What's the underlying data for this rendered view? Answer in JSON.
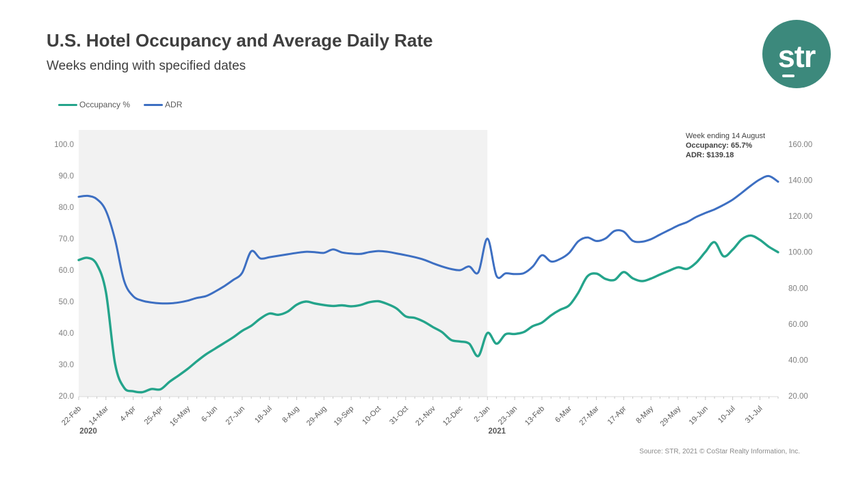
{
  "header": {
    "title": "U.S. Hotel Occupancy and Average Daily Rate",
    "subtitle": "Weeks ending with specified dates"
  },
  "logo": {
    "text": "str",
    "color": "#3C897C"
  },
  "legend": [
    {
      "label": "Occupancy %",
      "color": "#24A48B"
    },
    {
      "label": "ADR",
      "color": "#3D6FC2"
    }
  ],
  "annotation": {
    "week_ending": "Week ending 14 August",
    "occupancy": "Occupancy: 65.7%",
    "adr": "ADR: $139.18"
  },
  "source": "Source: STR, 2021 © CoStar Realty Information, Inc.",
  "chart_data": {
    "type": "line",
    "title": "U.S. Hotel Occupancy and Average Daily Rate",
    "subtitle": "Weeks ending with specified dates",
    "x_label_every": 3,
    "x_labels_shown": [
      "22-Feb",
      "14-Mar",
      "4-Apr",
      "25-Apr",
      "16-May",
      "6-Jun",
      "27-Jun",
      "18-Jul",
      "8-Aug",
      "29-Aug",
      "19-Sep",
      "10-Oct",
      "31-Oct",
      "21-Nov",
      "12-Dec",
      "2-Jan",
      "23-Jan",
      "13-Feb",
      "6-Mar",
      "27-Mar",
      "17-Apr",
      "8-May",
      "29-May",
      "19-Jun",
      "10-Jul",
      "31-Jul"
    ],
    "weeks": [
      "22-Feb",
      "29-Feb",
      "7-Mar",
      "14-Mar",
      "21-Mar",
      "28-Mar",
      "4-Apr",
      "11-Apr",
      "18-Apr",
      "25-Apr",
      "2-May",
      "9-May",
      "16-May",
      "23-May",
      "30-May",
      "6-Jun",
      "13-Jun",
      "20-Jun",
      "27-Jun",
      "4-Jul",
      "11-Jul",
      "18-Jul",
      "25-Jul",
      "1-Aug",
      "8-Aug",
      "15-Aug",
      "22-Aug",
      "29-Aug",
      "5-Sep",
      "12-Sep",
      "19-Sep",
      "26-Sep",
      "3-Oct",
      "10-Oct",
      "17-Oct",
      "24-Oct",
      "31-Oct",
      "7-Nov",
      "14-Nov",
      "21-Nov",
      "28-Nov",
      "5-Dec",
      "12-Dec",
      "19-Dec",
      "26-Dec",
      "2-Jan",
      "9-Jan",
      "16-Jan",
      "23-Jan",
      "30-Jan",
      "6-Feb",
      "13-Feb",
      "20-Feb",
      "27-Feb",
      "6-Mar",
      "13-Mar",
      "20-Mar",
      "27-Mar",
      "3-Apr",
      "10-Apr",
      "17-Apr",
      "24-Apr",
      "1-May",
      "8-May",
      "15-May",
      "22-May",
      "29-May",
      "5-Jun",
      "12-Jun",
      "19-Jun",
      "26-Jun",
      "3-Jul",
      "10-Jul",
      "17-Jul",
      "24-Jul",
      "31-Jul",
      "7-Aug",
      "14-Aug"
    ],
    "year_labels": [
      {
        "text": "2020",
        "week_index": 0
      },
      {
        "text": "2021",
        "week_index": 45
      }
    ],
    "shaded_region": {
      "from_week_index": 0,
      "to_week_index": 45,
      "color": "#F2F2F2"
    },
    "left_axis": {
      "min": 20,
      "max": 100,
      "step": 10,
      "decimals": 1,
      "tick_labels": [
        "100.0",
        "90.0",
        "80.0",
        "70.0",
        "60.0",
        "50.0",
        "40.0",
        "30.0",
        "20.0"
      ]
    },
    "right_axis": {
      "min": 20,
      "max": 160,
      "step": 20,
      "decimals": 2,
      "tick_labels": [
        "160.00",
        "140.00",
        "120.00",
        "100.00",
        "80.00",
        "60.00",
        "40.00",
        "20.00"
      ]
    },
    "series": [
      {
        "name": "Occupancy %",
        "axis": "left",
        "color": "#24A48B",
        "values": [
          63.2,
          63.9,
          61.8,
          53.0,
          30.3,
          22.6,
          21.5,
          21.2,
          22.2,
          22.1,
          24.5,
          26.5,
          28.6,
          31.0,
          33.2,
          35.0,
          36.8,
          38.6,
          40.7,
          42.3,
          44.6,
          46.2,
          45.8,
          46.8,
          49.0,
          50.0,
          49.4,
          48.9,
          48.6,
          48.8,
          48.5,
          48.9,
          49.8,
          50.1,
          49.2,
          47.8,
          45.3,
          44.8,
          43.6,
          41.9,
          40.3,
          37.8,
          37.3,
          36.6,
          32.7,
          40.0,
          36.6,
          39.6,
          39.7,
          40.3,
          42.2,
          43.3,
          45.6,
          47.4,
          48.8,
          52.8,
          58.0,
          58.9,
          57.2,
          56.9,
          59.4,
          57.4,
          56.5,
          57.3,
          58.6,
          59.8,
          60.9,
          60.4,
          62.4,
          65.8,
          68.9,
          64.4,
          66.5,
          69.8,
          71.0,
          69.6,
          67.4,
          65.7
        ]
      },
      {
        "name": "ADR",
        "axis": "right",
        "color": "#3D6FC2",
        "values": [
          130.8,
          131.3,
          129.5,
          123.0,
          107.0,
          84.0,
          75.5,
          73.0,
          72.0,
          71.5,
          71.5,
          72.0,
          73.0,
          74.5,
          75.5,
          78.0,
          81.0,
          84.5,
          88.5,
          100.5,
          96.5,
          97.2,
          98.0,
          98.8,
          99.6,
          100.2,
          100.0,
          99.6,
          101.5,
          99.8,
          99.2,
          99.0,
          100.0,
          100.6,
          100.2,
          99.3,
          98.3,
          97.2,
          95.8,
          93.8,
          92.0,
          90.6,
          90.0,
          92.0,
          88.8,
          107.5,
          86.8,
          88.2,
          87.8,
          88.3,
          92.0,
          98.3,
          94.8,
          96.2,
          99.6,
          106.0,
          108.2,
          106.2,
          107.6,
          111.8,
          111.4,
          106.3,
          105.8,
          107.2,
          109.8,
          112.3,
          114.8,
          116.8,
          119.6,
          121.8,
          123.8,
          126.3,
          129.2,
          133.0,
          137.0,
          140.5,
          142.3,
          139.18
        ]
      }
    ],
    "style": {
      "axis_line_color": "#D9D9D9",
      "tick_color": "#C9C9C9",
      "axis_text_color": "#7F7F7F",
      "x_label_color": "#595959",
      "year_label_color": "#595959"
    }
  }
}
